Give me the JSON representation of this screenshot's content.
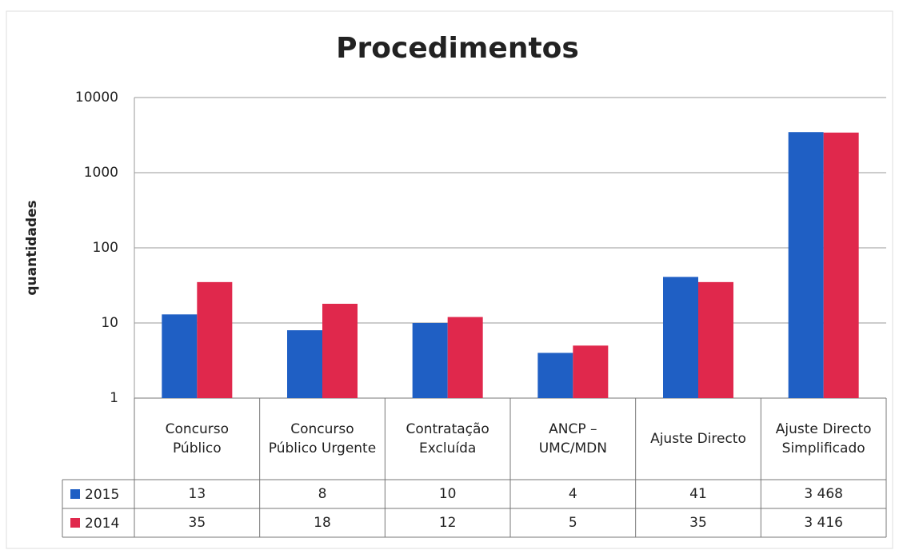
{
  "chart_data": {
    "type": "bar",
    "title": "Procedimentos",
    "y_label": "quantidades",
    "categories": [
      "Concurso Público",
      "Concurso Público Urgente",
      "Contratação Excluída",
      "ANCP – UMC/MDN",
      "Ajuste Directo",
      "Ajuste Directo Simplificado"
    ],
    "series": [
      {
        "name": "2015",
        "color": "#1f5fc4",
        "values": [
          13,
          8,
          10,
          4,
          41,
          3468
        ],
        "value_labels": [
          "13",
          "8",
          "10",
          "4",
          "41",
          "3 468"
        ]
      },
      {
        "name": "2014",
        "color": "#e0284c",
        "values": [
          35,
          18,
          12,
          5,
          35,
          3416
        ],
        "value_labels": [
          "35",
          "18",
          "12",
          "5",
          "35",
          "3 416"
        ]
      }
    ],
    "ylim": [
      1,
      10000
    ],
    "yticks": [
      1,
      10,
      100,
      1000,
      10000
    ],
    "log_scale": true,
    "grid": true
  }
}
